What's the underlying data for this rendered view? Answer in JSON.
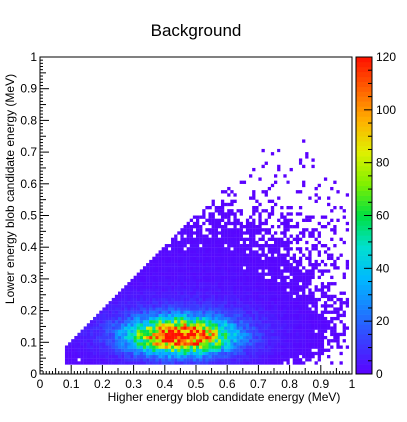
{
  "chart_data": {
    "type": "heatmap",
    "title": "Background",
    "xlabel": "Higher energy blob candidate energy (MeV)",
    "ylabel": "Lower energy blob candidate energy (MeV)",
    "xlim": [
      0,
      1
    ],
    "ylim": [
      0,
      1
    ],
    "x_ticks": [
      "0",
      "0.1",
      "0.2",
      "0.3",
      "0.4",
      "0.5",
      "0.6",
      "0.7",
      "0.8",
      "0.9",
      "1"
    ],
    "y_ticks": [
      "0",
      "0.1",
      "0.2",
      "0.3",
      "0.4",
      "0.5",
      "0.6",
      "0.7",
      "0.8",
      "0.9",
      "1"
    ],
    "colorbar": {
      "range": [
        0,
        120
      ],
      "ticks": [
        "0",
        "20",
        "40",
        "60",
        "80",
        "100",
        "120"
      ],
      "palette": [
        "#5b00ff",
        "#3a3cff",
        "#1a7dff",
        "#00b8ff",
        "#00e0d0",
        "#00e040",
        "#80f000",
        "#e0f000",
        "#ffb000",
        "#ff6000",
        "#ff1000"
      ]
    },
    "distribution": {
      "description_hidden": true,
      "bin_width": 0.01,
      "core": {
        "x": 0.45,
        "y": 0.12,
        "peak_counts": 120
      },
      "region": {
        "x_min": 0.1,
        "x_max": 0.98,
        "y_max_relation": "y < x"
      },
      "outliers": [
        [
          0.83,
          0.66
        ],
        [
          0.76,
          0.7
        ],
        [
          0.79,
          0.6
        ],
        [
          0.57,
          0.5
        ]
      ]
    }
  }
}
